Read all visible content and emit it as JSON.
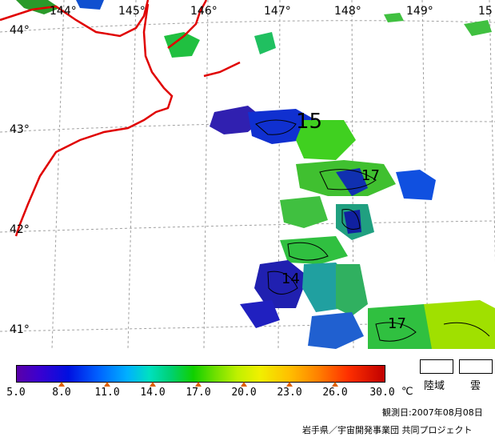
{
  "map": {
    "longitude_labels": [
      "144°",
      "145°",
      "146°",
      "147°",
      "148°",
      "149°",
      "15"
    ],
    "latitude_labels": [
      "44°",
      "43°",
      "42°",
      "41°"
    ],
    "contour_labels": [
      "15",
      "17",
      "14",
      "17"
    ],
    "colors": {
      "coastline": "#e00000",
      "grid": "#a0a0a0"
    }
  },
  "legend": {
    "ticks": [
      "5.0",
      "8.0",
      "11.0",
      "14.0",
      "17.0",
      "20.0",
      "23.0",
      "26.0",
      "30.0"
    ],
    "unit": "℃",
    "land_label": "陸域",
    "cloud_label": "雲",
    "observation_date": "観測日:2007年08月08日",
    "credit": "岩手県／宇宙開発事業団 共同プロジェクト"
  }
}
